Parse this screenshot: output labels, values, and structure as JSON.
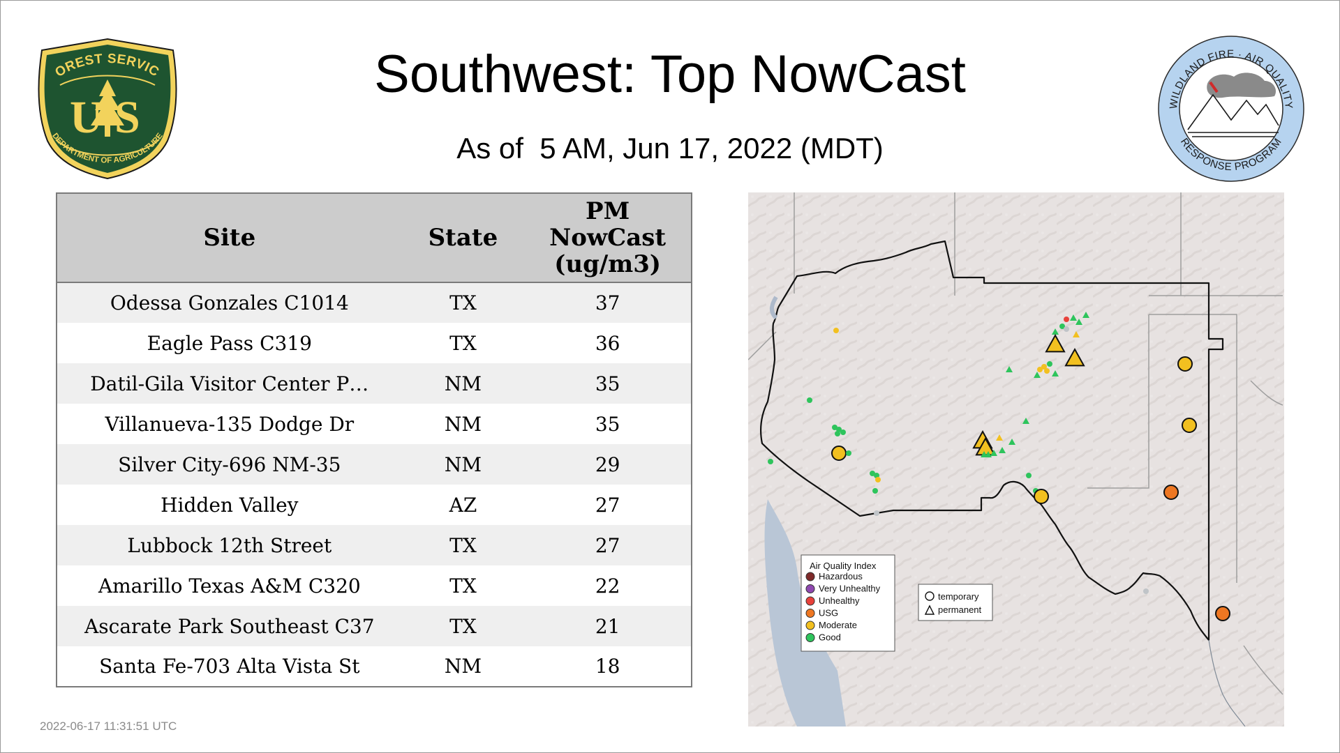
{
  "title": "Southwest: Top NowCast",
  "subtitle": "As of  5 AM, Jun 17, 2022 (MDT)",
  "timestamp": "2022-06-17 11:31:51 UTC",
  "logos": {
    "forest_service": {
      "top_text": "FOREST SERVICE",
      "bottom_text": "DEPARTMENT OF AGRICULTURE",
      "letters_left": "U",
      "letters_right": "S",
      "shield_color": "#1e5430",
      "accent_color": "#f2d35c"
    },
    "wildland_fire": {
      "top_text": "WILDLAND FIRE · AIR QUALITY",
      "bottom_text": "RESPONSE PROGRAM",
      "ring_color": "#b6d3ef"
    }
  },
  "table": {
    "headers": {
      "site": "Site",
      "state": "State",
      "pm_line1": "PM",
      "pm_line2": "NowCast",
      "pm_line3": "(ug/m3)"
    },
    "rows": [
      {
        "site": "Odessa Gonzales C1014",
        "state": "TX",
        "pm": "37"
      },
      {
        "site": "Eagle Pass C319",
        "state": "TX",
        "pm": "36"
      },
      {
        "site": "Datil-Gila Visitor Center P…",
        "state": "NM",
        "pm": "35"
      },
      {
        "site": "Villanueva-135 Dodge Dr",
        "state": "NM",
        "pm": "35"
      },
      {
        "site": "Silver City-696 NM-35",
        "state": "NM",
        "pm": "29"
      },
      {
        "site": "Hidden Valley",
        "state": "AZ",
        "pm": "27"
      },
      {
        "site": "Lubbock 12th Street",
        "state": "TX",
        "pm": "27"
      },
      {
        "site": "Amarillo Texas A&M C320",
        "state": "TX",
        "pm": "22"
      },
      {
        "site": "Ascarate Park Southeast C37",
        "state": "TX",
        "pm": "21"
      },
      {
        "site": "Santa Fe-703 Alta Vista St",
        "state": "NM",
        "pm": "18"
      }
    ]
  },
  "map": {
    "legend": {
      "title": "Air Quality Index",
      "items": [
        {
          "label": "Hazardous",
          "color": "#7e2a2a"
        },
        {
          "label": "Very Unhealthy",
          "color": "#8f48b0"
        },
        {
          "label": "Unhealthy",
          "color": "#e8413b"
        },
        {
          "label": "USG",
          "color": "#ee7722"
        },
        {
          "label": "Moderate",
          "color": "#f2c020"
        },
        {
          "label": "Good",
          "color": "#2ec45c"
        }
      ]
    },
    "shape_legend": {
      "temporary": "temporary",
      "permanent": "permanent"
    },
    "colors": {
      "terrain": "#e7e2e1",
      "water": "#b9c6d6",
      "region_border": "#111111",
      "state_border": "#9e9e9e",
      "no_data": "#c0c4c8"
    }
  }
}
